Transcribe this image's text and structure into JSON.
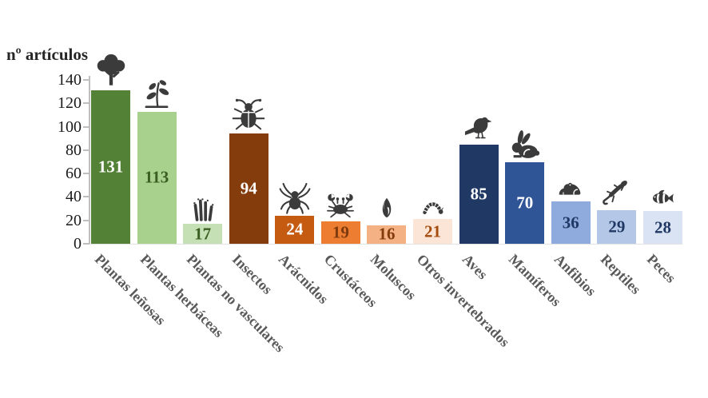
{
  "chart_data": {
    "type": "bar",
    "title": "",
    "ylabel": "nº artículos",
    "xlabel": "",
    "ylim": [
      0,
      140
    ],
    "yticks": [
      0,
      20,
      40,
      60,
      80,
      100,
      120,
      140
    ],
    "grid": false,
    "legend": "none",
    "categories": [
      "Plantas leñosas",
      "Plantas herbáceas",
      "Plantas no vasculares",
      "Insectos",
      "Arácnidos",
      "Crustáceos",
      "Moluscos",
      "Otros invertebrados",
      "Aves",
      "Mamíferos",
      "Anfibios",
      "Reptiles",
      "Peces"
    ],
    "values": [
      131,
      113,
      17,
      94,
      24,
      19,
      16,
      21,
      85,
      70,
      36,
      29,
      28
    ],
    "bars": [
      {
        "label": "Plantas leñosas",
        "value": 131,
        "color": "#538135",
        "value_color": "#ffffff",
        "icon": "tree-icon"
      },
      {
        "label": "Plantas herbáceas",
        "value": 113,
        "color": "#a9d18e",
        "value_color": "#3a5e22",
        "icon": "seedling-icon"
      },
      {
        "label": "Plantas no vasculares",
        "value": 17,
        "color": "#c5e0b4",
        "value_color": "#3a5e22",
        "icon": "moss-icon"
      },
      {
        "label": "Insectos",
        "value": 94,
        "color": "#843c0c",
        "value_color": "#ffffff",
        "icon": "beetle-icon"
      },
      {
        "label": "Arácnidos",
        "value": 24,
        "color": "#c55a11",
        "value_color": "#ffffff",
        "icon": "spider-icon"
      },
      {
        "label": "Crustáceos",
        "value": 19,
        "color": "#ed7d31",
        "value_color": "#7e3a0d",
        "icon": "crab-icon"
      },
      {
        "label": "Moluscos",
        "value": 16,
        "color": "#f4b183",
        "value_color": "#843c0c",
        "icon": "shell-icon"
      },
      {
        "label": "Otros invertebrados",
        "value": 21,
        "color": "#fbe5d6",
        "value_color": "#a34c0d",
        "icon": "caterpillar-icon"
      },
      {
        "label": "Aves",
        "value": 85,
        "color": "#1f3864",
        "value_color": "#ffffff",
        "icon": "bird-icon"
      },
      {
        "label": "Mamíferos",
        "value": 70,
        "color": "#2f5597",
        "value_color": "#ffffff",
        "icon": "rabbit-icon"
      },
      {
        "label": "Anfibios",
        "value": 36,
        "color": "#8faadc",
        "value_color": "#1f3864",
        "icon": "frog-icon"
      },
      {
        "label": "Reptiles",
        "value": 29,
        "color": "#b4c7e7",
        "value_color": "#1f3864",
        "icon": "lizard-icon"
      },
      {
        "label": "Peces",
        "value": 28,
        "color": "#dae3f3",
        "value_color": "#1f3864",
        "icon": "fish-icon"
      }
    ],
    "axis_color": "#bfbfbf",
    "icon_color": "#3b3b3b",
    "xlabel_color": "#595959"
  }
}
